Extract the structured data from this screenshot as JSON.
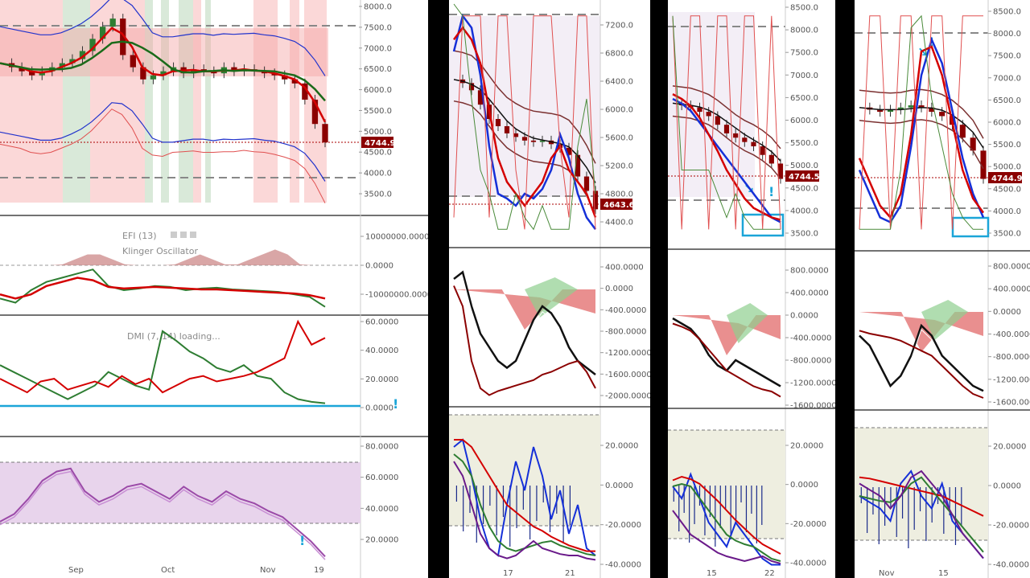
{
  "chart_data": [
    {
      "type": "line",
      "panel": "left",
      "x_ticks": [
        "Sep",
        "Oct",
        "Nov",
        "19"
      ],
      "indicator_labels": [
        "EFI (13)",
        "Klinger Oscillator",
        "DMI (7, 14) loading..."
      ],
      "price_axis": [
        "8000.0",
        "7500.0",
        "7000.0",
        "6500.0",
        "6000.0",
        "5500.0",
        "5000.0",
        "4500.0",
        "4000.0",
        "3500.0"
      ],
      "last_price": "4744.9",
      "efi_axis": [
        "10000000.0000",
        "0.0000",
        "-10000000.0000"
      ],
      "dmi_axis": [
        "60.0000",
        "40.0000",
        "20.0000",
        "0.0000"
      ],
      "rsi_axis": [
        "80.0000",
        "60.0000",
        "40.0000",
        "20.0000"
      ],
      "close_series": [
        6700,
        6600,
        6500,
        6400,
        6500,
        6600,
        6700,
        6800,
        7000,
        7300,
        7600,
        7800,
        6900,
        6600,
        6300,
        6400,
        6500,
        6600,
        6450,
        6550,
        6500,
        6450,
        6600,
        6500,
        6550,
        6500,
        6450,
        6400,
        6300,
        6200,
        5800,
        5200,
        4744.9
      ],
      "dmi_plus": [
        30,
        25,
        20,
        15,
        10,
        5,
        10,
        15,
        25,
        20,
        15,
        12,
        55,
        48,
        40,
        35,
        28,
        25,
        30,
        22,
        20,
        10,
        5,
        3,
        2
      ],
      "dmi_minus": [
        20,
        15,
        10,
        18,
        20,
        12,
        15,
        18,
        14,
        22,
        16,
        20,
        10,
        15,
        20,
        22,
        18,
        20,
        22,
        25,
        30,
        35,
        62,
        45,
        50
      ],
      "rsi_values": [
        35,
        40,
        50,
        62,
        68,
        70,
        55,
        48,
        52,
        58,
        60,
        55,
        50,
        58,
        52,
        48,
        55,
        50,
        47,
        42,
        38,
        30,
        22,
        12
      ]
    },
    {
      "type": "line",
      "panel": "mid",
      "x_ticks": [
        "17",
        "21"
      ],
      "price_axis": [
        "7200.0",
        "6800.0",
        "6400.0",
        "6000.0",
        "5600.0",
        "5200.0",
        "4800.0",
        "4400.0"
      ],
      "last_price": "4643.6",
      "osc1_axis": [
        "400.0000",
        "0.0000",
        "-400.0000",
        "-800.0000",
        "-1200.0000",
        "-1600.0000",
        "-2000.0000"
      ],
      "osc2_axis": [
        "20.0000",
        "0.0000",
        "-20.0000",
        "-40.0000"
      ],
      "close_series": [
        6450,
        6400,
        6300,
        6100,
        5900,
        5800,
        5700,
        5650,
        5600,
        5580,
        5600,
        5550,
        5500,
        5400,
        5100,
        4900,
        4643.6
      ]
    },
    {
      "type": "line",
      "panel": "right1",
      "x_ticks": [
        "15",
        "22"
      ],
      "price_axis": [
        "8500.0",
        "8000.0",
        "7500.0",
        "7000.0",
        "6500.0",
        "6000.0",
        "5500.0",
        "5000.0",
        "4500.0",
        "4000.0",
        "3500.0"
      ],
      "last_price": "4744.5",
      "osc1_axis": [
        "800.0000",
        "400.0000",
        "0.0000",
        "-400.0000",
        "-800.0000",
        "-1200.0000",
        "-1600.0000"
      ],
      "osc2_axis": [
        "20.0000",
        "0.0000",
        "-20.0000",
        "-40.0000"
      ],
      "close_series": [
        6500,
        6450,
        6400,
        6300,
        6200,
        6000,
        5800,
        5700,
        5600,
        5500,
        5300,
        5100,
        4744.5
      ]
    },
    {
      "type": "line",
      "panel": "right2",
      "x_ticks": [
        "Nov",
        "15"
      ],
      "price_axis": [
        "8500.0",
        "8000.0",
        "7500.0",
        "7000.0",
        "6500.0",
        "6000.0",
        "5500.0",
        "5000.0",
        "4500.0",
        "4000.0",
        "3500.0"
      ],
      "last_price": "4744.9",
      "osc1_axis": [
        "800.0000",
        "400.0000",
        "0.0000",
        "-400.0000",
        "-800.0000",
        "-1200.0000",
        "-1600.0000"
      ],
      "osc2_axis": [
        "20.0000",
        "0.0000",
        "-20.0000",
        "-40.0000"
      ],
      "close_series": [
        6400,
        6350,
        6300,
        6350,
        6400,
        6450,
        6400,
        6300,
        6200,
        6000,
        5700,
        5400,
        4744.9
      ]
    }
  ]
}
